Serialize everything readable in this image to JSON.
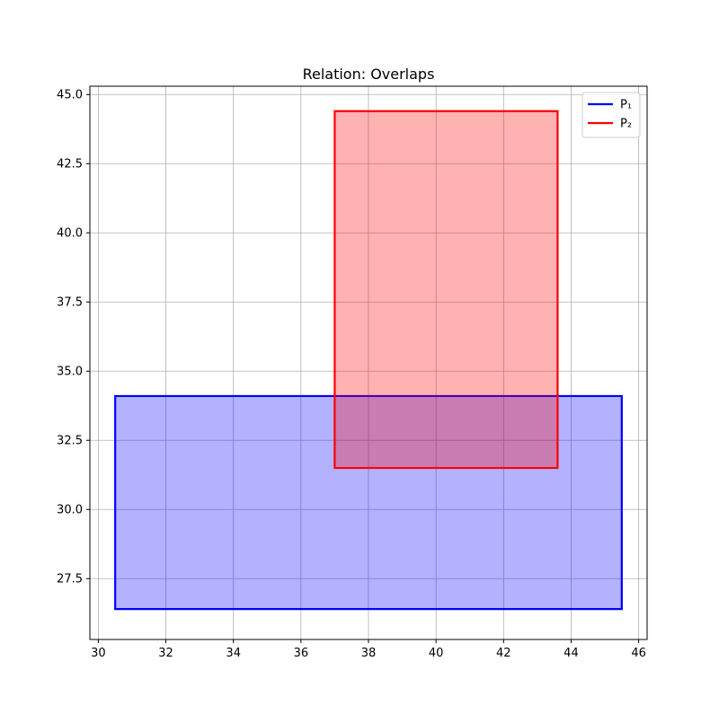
{
  "chart_data": {
    "type": "area",
    "title": "Relation: Overlaps",
    "xlabel": "",
    "ylabel": "",
    "xlim": [
      29.75,
      46.25
    ],
    "ylim": [
      25.3,
      45.3
    ],
    "x_ticks": [
      30,
      32,
      34,
      36,
      38,
      40,
      42,
      44,
      46
    ],
    "y_ticks": [
      27.5,
      30.0,
      32.5,
      35.0,
      37.5,
      40.0,
      42.5,
      45.0
    ],
    "x_tick_labels": [
      "30",
      "32",
      "34",
      "36",
      "38",
      "40",
      "42",
      "44",
      "46"
    ],
    "y_tick_labels": [
      "27.5",
      "30.0",
      "32.5",
      "35.0",
      "37.5",
      "40.0",
      "42.5",
      "45.0"
    ],
    "grid": true,
    "legend_position": "top-right",
    "series": [
      {
        "name": "P₁",
        "color": "#0000ff",
        "fill": "#0000ff",
        "fill_opacity": 0.3,
        "polygon": [
          [
            30.5,
            26.4
          ],
          [
            45.5,
            26.4
          ],
          [
            45.5,
            34.1
          ],
          [
            30.5,
            34.1
          ]
        ]
      },
      {
        "name": "P₂",
        "color": "#ff0000",
        "fill": "#ff0000",
        "fill_opacity": 0.3,
        "polygon": [
          [
            37.0,
            31.5
          ],
          [
            43.6,
            31.5
          ],
          [
            43.6,
            44.4
          ],
          [
            37.0,
            44.4
          ]
        ]
      }
    ]
  }
}
